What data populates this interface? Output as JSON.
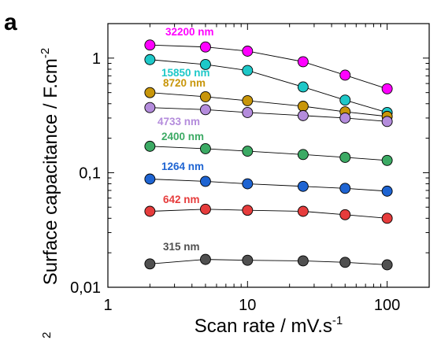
{
  "panel_label": "a",
  "stray_mark": "2",
  "chart_data": {
    "type": "scatter",
    "title": "",
    "xlabel_main": "Scan rate / mV.s",
    "xlabel_sup": "-1",
    "ylabel_main": "Surface capacitance / F.cm",
    "ylabel_sup": "-2",
    "xscale": "log",
    "yscale": "log",
    "xlim": [
      1,
      200
    ],
    "ylim": [
      0.01,
      2
    ],
    "xticks": [
      1,
      10,
      100
    ],
    "xtick_labels": [
      "1",
      "10",
      "100"
    ],
    "yticks": [
      0.01,
      0.1,
      1
    ],
    "ytick_labels": [
      "0,01",
      "0,1",
      "1"
    ],
    "grid": false,
    "legend": "inline labels beside series",
    "x": [
      2,
      5,
      10,
      25,
      50,
      100
    ],
    "series": [
      {
        "name": "32200 nm",
        "color": "#ff00ff",
        "values": [
          1.3,
          1.25,
          1.15,
          0.93,
          0.71,
          0.54
        ]
      },
      {
        "name": "15850 nm",
        "color": "#1ec8c8",
        "values": [
          0.97,
          0.88,
          0.78,
          0.56,
          0.43,
          0.335
        ]
      },
      {
        "name": "8720 nm",
        "color": "#c8960a",
        "values": [
          0.5,
          0.46,
          0.425,
          0.38,
          0.34,
          0.31
        ]
      },
      {
        "name": "4733 nm",
        "color": "#b48cdc",
        "values": [
          0.37,
          0.355,
          0.335,
          0.315,
          0.3,
          0.28
        ]
      },
      {
        "name": "2400 nm",
        "color": "#3caa64",
        "values": [
          0.17,
          0.162,
          0.154,
          0.144,
          0.136,
          0.128
        ]
      },
      {
        "name": "1264 nm",
        "color": "#1e64d2",
        "values": [
          0.088,
          0.084,
          0.08,
          0.076,
          0.073,
          0.069
        ]
      },
      {
        "name": "642 nm",
        "color": "#e63c3c",
        "values": [
          0.046,
          0.048,
          0.047,
          0.046,
          0.043,
          0.04
        ]
      },
      {
        "name": "315 nm",
        "color": "#505050",
        "values": [
          0.016,
          0.0175,
          0.0172,
          0.017,
          0.0165,
          0.0157
        ]
      }
    ]
  }
}
